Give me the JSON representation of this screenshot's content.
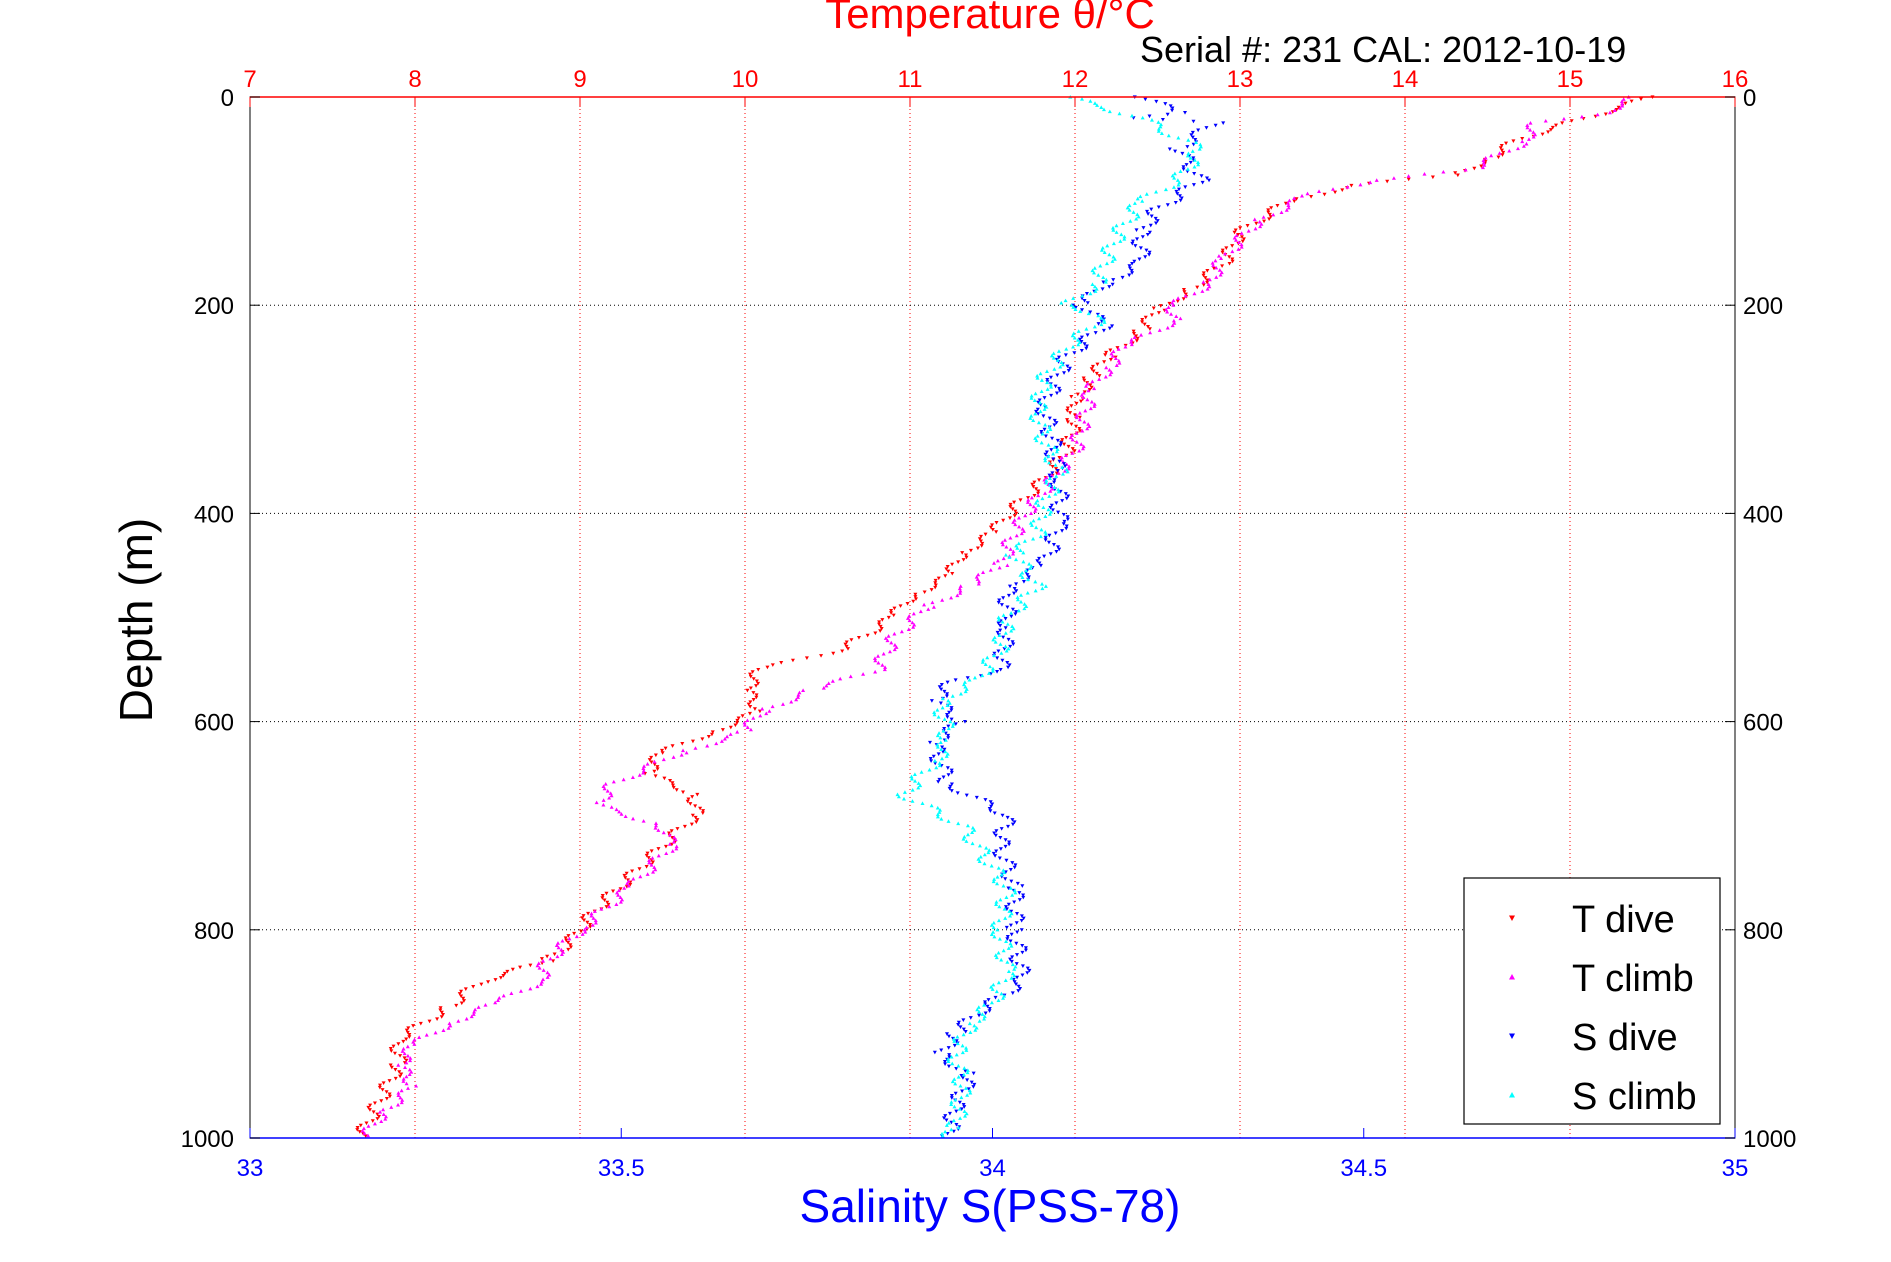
{
  "chart_data": {
    "type": "scatter",
    "title": "Temperature θ/°C",
    "subtitle": "Serial #: 231  CAL: 2012-10-19",
    "xlabel_bottom": "Salinity S(PSS-78)",
    "xlabel_top": "Temperature θ/°C",
    "ylabel": "Depth (m)",
    "ylim": [
      0,
      1000
    ],
    "y_reversed": true,
    "x_bottom_lim": [
      33,
      35
    ],
    "x_top_lim": [
      7,
      16
    ],
    "x_bottom_ticks": [
      "33",
      "33.5",
      "34",
      "34.5",
      "35"
    ],
    "x_top_ticks": [
      "7",
      "8",
      "9",
      "10",
      "11",
      "12",
      "13",
      "14",
      "15",
      "16"
    ],
    "y_ticks": [
      "0",
      "200",
      "400",
      "600",
      "800",
      "1000"
    ],
    "grid": true,
    "legend_position": "bottom-right",
    "colors": {
      "T_dive": "#ff0000",
      "T_climb": "#ff00ff",
      "S_dive": "#0000ff",
      "S_climb": "#00ffff",
      "top_axis": "#ff0000",
      "bottom_axis": "#0000ff"
    },
    "series": [
      {
        "name": "T dive",
        "axis": "top",
        "marker": "triangle-down",
        "points": [
          [
            15.5,
            0
          ],
          [
            15.3,
            10
          ],
          [
            14.7,
            40
          ],
          [
            14.5,
            60
          ],
          [
            14.3,
            75
          ],
          [
            13.7,
            85
          ],
          [
            13.3,
            100
          ],
          [
            13.0,
            130
          ],
          [
            12.9,
            160
          ],
          [
            12.7,
            185
          ],
          [
            12.5,
            205
          ],
          [
            12.4,
            225
          ],
          [
            12.2,
            250
          ],
          [
            12.1,
            270
          ],
          [
            12.0,
            290
          ],
          [
            12.0,
            310
          ],
          [
            11.95,
            340
          ],
          [
            11.8,
            370
          ],
          [
            11.6,
            400
          ],
          [
            11.5,
            420
          ],
          [
            11.3,
            440
          ],
          [
            11.25,
            460
          ],
          [
            11.0,
            480
          ],
          [
            10.9,
            500
          ],
          [
            10.6,
            530
          ],
          [
            10.1,
            550
          ],
          [
            10.0,
            570
          ],
          [
            10.1,
            590
          ],
          [
            9.8,
            610
          ],
          [
            9.5,
            630
          ],
          [
            9.4,
            650
          ],
          [
            9.7,
            670
          ],
          [
            9.7,
            690
          ],
          [
            9.5,
            720
          ],
          [
            9.3,
            750
          ],
          [
            9.1,
            780
          ],
          [
            8.95,
            810
          ],
          [
            8.8,
            830
          ],
          [
            8.6,
            840
          ],
          [
            8.4,
            850
          ],
          [
            8.2,
            875
          ],
          [
            7.9,
            905
          ],
          [
            7.9,
            930
          ],
          [
            7.8,
            960
          ],
          [
            7.7,
            990
          ],
          [
            7.65,
            1000
          ]
        ]
      },
      {
        "name": "T climb",
        "axis": "top",
        "marker": "triangle-up",
        "points": [
          [
            15.4,
            0
          ],
          [
            15.2,
            15
          ],
          [
            14.8,
            25
          ],
          [
            14.7,
            45
          ],
          [
            14.4,
            70
          ],
          [
            13.8,
            80
          ],
          [
            13.4,
            95
          ],
          [
            13.1,
            120
          ],
          [
            12.9,
            155
          ],
          [
            12.8,
            180
          ],
          [
            12.6,
            200
          ],
          [
            12.6,
            215
          ],
          [
            12.3,
            240
          ],
          [
            12.2,
            260
          ],
          [
            12.1,
            280
          ],
          [
            12.05,
            310
          ],
          [
            12.0,
            340
          ],
          [
            11.85,
            370
          ],
          [
            11.7,
            400
          ],
          [
            11.6,
            430
          ],
          [
            11.55,
            450
          ],
          [
            11.35,
            470
          ],
          [
            11.1,
            490
          ],
          [
            10.9,
            520
          ],
          [
            10.8,
            550
          ],
          [
            10.4,
            570
          ],
          [
            10.1,
            590
          ],
          [
            10.0,
            610
          ],
          [
            9.6,
            630
          ],
          [
            9.2,
            660
          ],
          [
            9.1,
            680
          ],
          [
            9.5,
            700
          ],
          [
            9.55,
            720
          ],
          [
            9.3,
            760
          ],
          [
            9.0,
            800
          ],
          [
            8.8,
            830
          ],
          [
            8.75,
            850
          ],
          [
            8.5,
            870
          ],
          [
            8.2,
            890
          ],
          [
            8.0,
            910
          ],
          [
            7.9,
            930
          ],
          [
            8.0,
            950
          ],
          [
            7.8,
            975
          ],
          [
            7.7,
            1000
          ]
        ]
      },
      {
        "name": "S dive",
        "axis": "bottom",
        "marker": "triangle-down",
        "points": [
          [
            34.2,
            0
          ],
          [
            34.25,
            15
          ],
          [
            34.2,
            20
          ],
          [
            34.3,
            25
          ],
          [
            34.25,
            50
          ],
          [
            34.28,
            80
          ],
          [
            34.22,
            110
          ],
          [
            34.2,
            130
          ],
          [
            34.2,
            160
          ],
          [
            34.15,
            180
          ],
          [
            34.12,
            200
          ],
          [
            34.15,
            220
          ],
          [
            34.1,
            250
          ],
          [
            34.08,
            280
          ],
          [
            34.07,
            300
          ],
          [
            34.08,
            330
          ],
          [
            34.09,
            370
          ],
          [
            34.09,
            410
          ],
          [
            34.07,
            450
          ],
          [
            34.02,
            470
          ],
          [
            34.02,
            510
          ],
          [
            34.01,
            550
          ],
          [
            33.95,
            560
          ],
          [
            33.92,
            580
          ],
          [
            33.96,
            600
          ],
          [
            33.92,
            620
          ],
          [
            33.94,
            660
          ],
          [
            34.02,
            690
          ],
          [
            34.01,
            720
          ],
          [
            34.03,
            760
          ],
          [
            34.03,
            800
          ],
          [
            34.04,
            850
          ],
          [
            33.98,
            880
          ],
          [
            33.95,
            900
          ],
          [
            33.93,
            920
          ],
          [
            33.97,
            940
          ],
          [
            33.95,
            970
          ],
          [
            33.94,
            1000
          ]
        ]
      },
      {
        "name": "S climb",
        "axis": "bottom",
        "marker": "triangle-up",
        "points": [
          [
            34.1,
            0
          ],
          [
            34.15,
            10
          ],
          [
            34.2,
            20
          ],
          [
            34.28,
            50
          ],
          [
            34.25,
            80
          ],
          [
            34.2,
            100
          ],
          [
            34.17,
            130
          ],
          [
            34.15,
            160
          ],
          [
            34.14,
            180
          ],
          [
            34.1,
            200
          ],
          [
            34.15,
            210
          ],
          [
            34.1,
            240
          ],
          [
            34.07,
            270
          ],
          [
            34.06,
            300
          ],
          [
            34.07,
            330
          ],
          [
            34.09,
            360
          ],
          [
            34.07,
            390
          ],
          [
            34.06,
            420
          ],
          [
            34.03,
            440
          ],
          [
            34.06,
            470
          ],
          [
            34.02,
            500
          ],
          [
            34.01,
            530
          ],
          [
            33.98,
            560
          ],
          [
            33.93,
            580
          ],
          [
            33.94,
            620
          ],
          [
            33.92,
            640
          ],
          [
            33.88,
            670
          ],
          [
            33.96,
            700
          ],
          [
            33.99,
            730
          ],
          [
            34.02,
            760
          ],
          [
            34.01,
            800
          ],
          [
            34.02,
            840
          ],
          [
            34.0,
            870
          ],
          [
            33.97,
            890
          ],
          [
            33.95,
            920
          ],
          [
            33.96,
            950
          ],
          [
            33.95,
            990
          ],
          [
            33.94,
            1000
          ]
        ]
      }
    ]
  }
}
